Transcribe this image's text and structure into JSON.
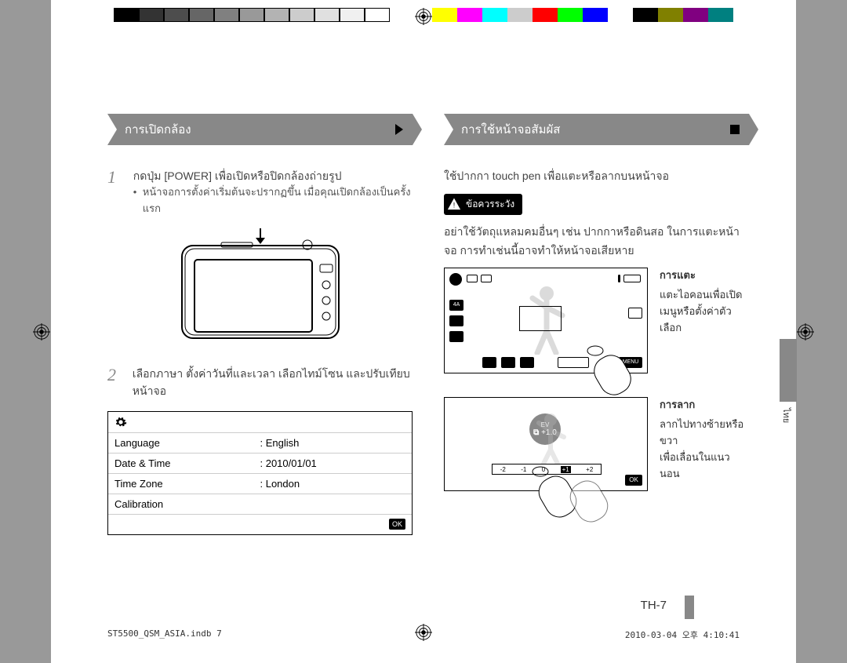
{
  "colorbars": {
    "left": [
      "#000000",
      "#333333",
      "#4d4d4d",
      "#666666",
      "#808080",
      "#999999",
      "#b3b3b3",
      "#cccccc",
      "#e0e0e0",
      "#f0f0f0",
      "#ffffff"
    ],
    "right": [
      "#ffff00",
      "#ff00ff",
      "#00ffff",
      "#cccccc",
      "#ff0000",
      "#00ff00",
      "#0000ff",
      "#ffffff",
      "#000000",
      "#808000",
      "#800080",
      "#008080"
    ]
  },
  "left_ribbon": "การเปิดกล้อง",
  "right_ribbon": "การใช้หน้าจอสัมผัส",
  "step1": {
    "num": "1",
    "text": "กดปุ่ม [POWER] เพื่อเปิดหรือปิดกล้องถ่ายรูป",
    "bullet": "หน้าจอการตั้งค่าเริ่มต้นจะปรากฏขึ้น เมื่อคุณเปิดกล้องเป็นครั้งแรก"
  },
  "step2": {
    "num": "2",
    "text": "เลือกภาษา ตั้งค่าวันที่และเวลา เลือกไทม์โซน และปรับเทียบหน้าจอ"
  },
  "settings": {
    "rows": [
      {
        "k": "Language",
        "v": ": English"
      },
      {
        "k": "Date & Time",
        "v": ": 2010/01/01"
      },
      {
        "k": "Time Zone",
        "v": ": London"
      },
      {
        "k": "Calibration",
        "v": ""
      }
    ],
    "ok": "OK"
  },
  "right_intro": "ใช้ปากกา touch pen เพื่อแตะหรือลากบนหน้าจอ",
  "caution_label": "ข้อควรระวัง",
  "caution_text": "อย่าใช้วัตถุแหลมคมอื่นๆ เช่น ปากกาหรือดินสอ ในการแตะหน้าจอ การทำเช่นนี้อาจทำให้หน้าจอเสียหาย",
  "tap": {
    "title": "การแตะ",
    "l1": "แตะไอคอนเพื่อเปิด",
    "l2": "เมนูหรือตั้งค่าตัวเลือก"
  },
  "drag": {
    "title": "การลาก",
    "l1": "ลากไปทางซ้ายหรือขวา",
    "l2": "เพื่อเลื่อนในแนวนอน"
  },
  "ev": {
    "label": "EV",
    "value": "+1.0",
    "ticks": [
      "-2",
      "-1",
      "0",
      "+1",
      "+2"
    ]
  },
  "menu_label": "MENU",
  "ok": "OK",
  "side_label": "ไทย",
  "page_num": "TH-7",
  "footer_left": "ST5500_QSM_ASIA.indb   7",
  "footer_right": "2010-03-04   오후 4:10:41"
}
